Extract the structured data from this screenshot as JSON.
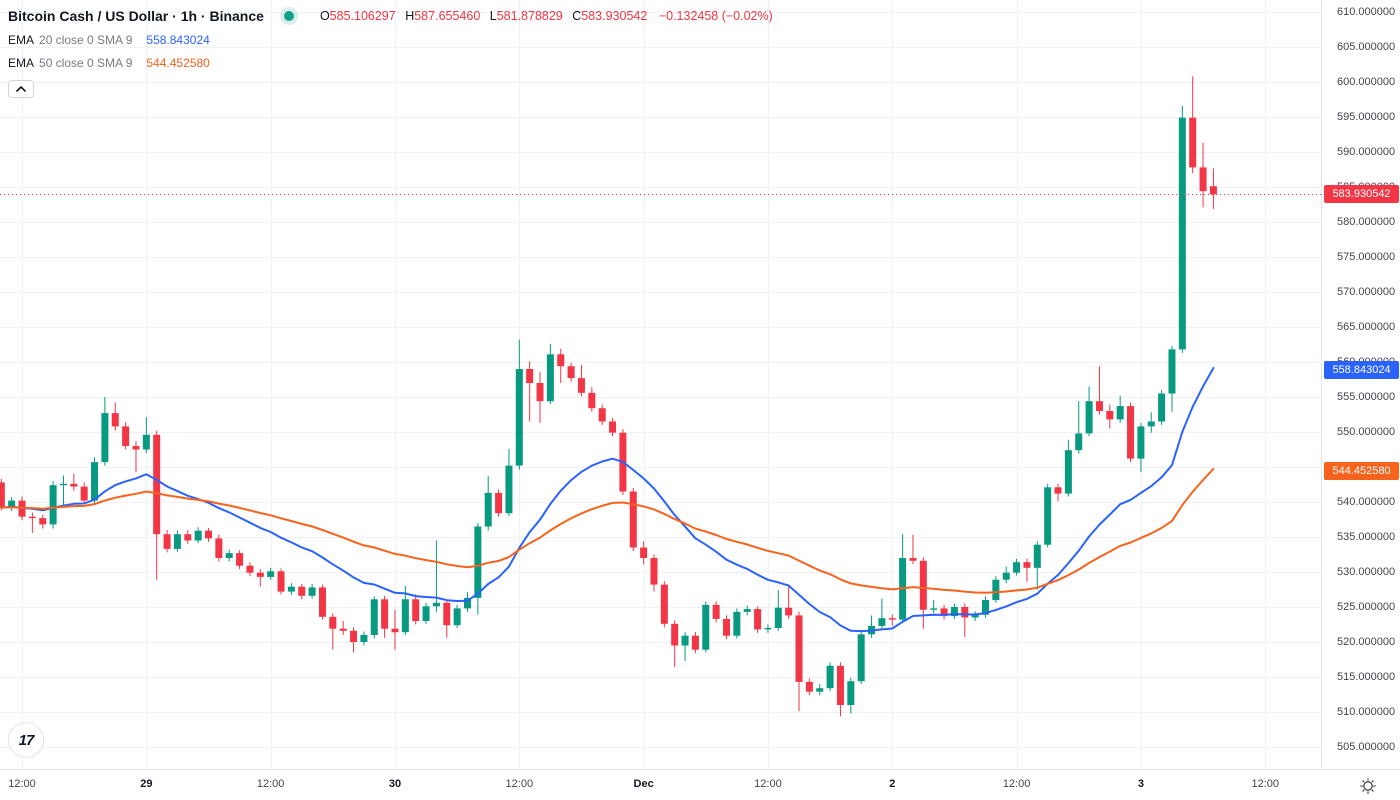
{
  "header": {
    "symbol_title": "Bitcoin Cash / US Dollar · 1h · Binance",
    "market_status_icon": "market-open-dot",
    "ohlc": {
      "o_label": "O",
      "o": "585.106297",
      "h_label": "H",
      "h": "587.655460",
      "l_label": "L",
      "l": "581.878829",
      "c_label": "C",
      "c": "583.930542",
      "change": "−0.132458 (−0.02%)"
    },
    "indicators": [
      {
        "name": "EMA",
        "params": "20 close 0 SMA 9",
        "value": "558.843024",
        "color": "#2962FF"
      },
      {
        "name": "EMA",
        "params": "50 close 0 SMA 9",
        "value": "544.452580",
        "color": "#F7621C"
      }
    ]
  },
  "colors": {
    "up": "#089981",
    "down": "#F23645",
    "ema20": "#2962FF",
    "ema50": "#F7621C",
    "current_price_line": "#F23645",
    "grid": "#F0F1F4",
    "axis_text": "#42464E"
  },
  "price_axis": {
    "ticks": [
      "610.000000",
      "605.000000",
      "600.000000",
      "595.000000",
      "590.000000",
      "585.000000",
      "580.000000",
      "575.000000",
      "570.000000",
      "565.000000",
      "560.000000",
      "555.000000",
      "550.000000",
      "545.000000",
      "540.000000",
      "535.000000",
      "530.000000",
      "525.000000",
      "520.000000",
      "515.000000",
      "510.000000",
      "505.000000"
    ],
    "tags": [
      {
        "text": "583.930542",
        "price": 583.930542,
        "bg": "#F23645",
        "name": "current-price-tag"
      },
      {
        "text": "558.843024",
        "price": 558.843024,
        "bg": "#2962FF",
        "name": "ema20-price-tag"
      },
      {
        "text": "544.452580",
        "price": 544.45258,
        "bg": "#F7621C",
        "name": "ema50-price-tag"
      }
    ]
  },
  "time_axis": {
    "labels": [
      {
        "text": "12:00",
        "index": 2,
        "major": false
      },
      {
        "text": "29",
        "index": 14,
        "major": true
      },
      {
        "text": "12:00",
        "index": 26,
        "major": false
      },
      {
        "text": "30",
        "index": 38,
        "major": true
      },
      {
        "text": "12:00",
        "index": 50,
        "major": false
      },
      {
        "text": "Dec",
        "index": 62,
        "major": true
      },
      {
        "text": "12:00",
        "index": 74,
        "major": false
      },
      {
        "text": "2",
        "index": 86,
        "major": true
      },
      {
        "text": "12:00",
        "index": 98,
        "major": false
      },
      {
        "text": "3",
        "index": 110,
        "major": true
      },
      {
        "text": "12:00",
        "index": 122,
        "major": false
      }
    ]
  },
  "chart_data": {
    "type": "candlestick",
    "title": "Bitcoin Cash / US Dollar",
    "interval": "1h",
    "exchange": "Binance",
    "price_range": [
      505,
      610
    ],
    "grid_step": 5,
    "current_price": 583.930542,
    "overlays": [
      {
        "name": "EMA 20",
        "period": 20,
        "color": "#2962FF",
        "last_value": 558.843024
      },
      {
        "name": "EMA 50",
        "period": 50,
        "color": "#F7621C",
        "last_value": 544.45258
      }
    ],
    "ohlc": [
      [
        542.8,
        543.3,
        538.8,
        539.2
      ],
      [
        539.2,
        540.7,
        538.7,
        540.2
      ],
      [
        540.2,
        540.8,
        537.4,
        537.9
      ],
      [
        537.9,
        538.5,
        535.6,
        537.7
      ],
      [
        537.7,
        538.2,
        536.2,
        536.8
      ],
      [
        536.8,
        543.0,
        536.2,
        542.4
      ],
      [
        542.4,
        543.8,
        539.5,
        542.6
      ],
      [
        542.6,
        544.0,
        541.6,
        542.2
      ],
      [
        542.2,
        542.8,
        539.7,
        540.2
      ],
      [
        540.2,
        546.4,
        539.8,
        545.7
      ],
      [
        545.7,
        555.0,
        545.2,
        552.7
      ],
      [
        552.7,
        554.2,
        550.2,
        550.8
      ],
      [
        550.8,
        551.4,
        547.5,
        548.0
      ],
      [
        548.0,
        548.7,
        544.3,
        547.5
      ],
      [
        547.5,
        552.1,
        547.0,
        549.6
      ],
      [
        549.6,
        550.2,
        528.9,
        535.4
      ],
      [
        535.4,
        536.0,
        532.8,
        533.3
      ],
      [
        533.3,
        535.9,
        532.9,
        535.4
      ],
      [
        535.4,
        536.0,
        534.0,
        534.5
      ],
      [
        534.5,
        536.4,
        534.1,
        535.9
      ],
      [
        535.9,
        536.3,
        534.3,
        534.8
      ],
      [
        534.8,
        535.3,
        531.5,
        532.0
      ],
      [
        532.0,
        533.2,
        531.5,
        532.7
      ],
      [
        532.7,
        533.1,
        530.4,
        530.9
      ],
      [
        530.9,
        531.4,
        529.4,
        529.9
      ],
      [
        529.9,
        530.4,
        527.9,
        529.3
      ],
      [
        529.3,
        530.6,
        528.9,
        530.1
      ],
      [
        530.1,
        530.5,
        526.8,
        527.2
      ],
      [
        527.2,
        528.4,
        526.7,
        527.9
      ],
      [
        527.9,
        528.3,
        526.1,
        526.6
      ],
      [
        526.6,
        528.3,
        526.2,
        527.8
      ],
      [
        527.8,
        528.2,
        523.2,
        523.6
      ],
      [
        523.6,
        524.1,
        518.9,
        521.9
      ],
      [
        521.9,
        523.0,
        521.0,
        521.6
      ],
      [
        521.6,
        522.1,
        518.5,
        520.0
      ],
      [
        520.0,
        521.5,
        519.5,
        521.0
      ],
      [
        521.0,
        526.5,
        520.5,
        526.1
      ],
      [
        526.1,
        526.6,
        520.6,
        521.9
      ],
      [
        521.9,
        524.6,
        518.9,
        521.4
      ],
      [
        521.4,
        528.0,
        521.0,
        526.1
      ],
      [
        526.1,
        526.8,
        522.5,
        523.0
      ],
      [
        523.0,
        525.6,
        522.6,
        525.1
      ],
      [
        525.1,
        534.5,
        524.3,
        525.6
      ],
      [
        525.6,
        526.1,
        520.6,
        522.4
      ],
      [
        522.4,
        525.3,
        522.0,
        524.8
      ],
      [
        524.8,
        527.1,
        524.3,
        526.3
      ],
      [
        526.3,
        537.0,
        523.9,
        536.5
      ],
      [
        536.5,
        543.7,
        535.9,
        541.3
      ],
      [
        541.3,
        541.8,
        537.9,
        538.4
      ],
      [
        538.4,
        547.6,
        538.0,
        545.2
      ],
      [
        545.2,
        563.2,
        544.6,
        559.0
      ],
      [
        559.0,
        560.1,
        551.5,
        557.0
      ],
      [
        557.0,
        558.6,
        551.3,
        554.4
      ],
      [
        554.4,
        562.6,
        554.0,
        561.1
      ],
      [
        561.1,
        561.9,
        557.0,
        559.4
      ],
      [
        559.4,
        559.9,
        557.2,
        557.7
      ],
      [
        557.7,
        559.6,
        555.1,
        555.6
      ],
      [
        555.6,
        556.4,
        552.9,
        553.4
      ],
      [
        553.4,
        553.9,
        551.0,
        551.5
      ],
      [
        551.5,
        552.0,
        549.4,
        549.9
      ],
      [
        549.9,
        550.4,
        541.0,
        541.5
      ],
      [
        541.5,
        542.0,
        533.0,
        533.5
      ],
      [
        533.5,
        534.4,
        531.1,
        532.0
      ],
      [
        532.0,
        532.5,
        527.2,
        528.2
      ],
      [
        528.2,
        528.7,
        522.1,
        522.6
      ],
      [
        522.6,
        523.1,
        516.4,
        519.5
      ],
      [
        519.5,
        521.4,
        517.3,
        520.9
      ],
      [
        520.9,
        521.4,
        518.4,
        518.9
      ],
      [
        518.9,
        525.8,
        518.5,
        525.3
      ],
      [
        525.3,
        525.8,
        522.8,
        523.3
      ],
      [
        523.3,
        523.8,
        520.4,
        520.9
      ],
      [
        520.9,
        524.8,
        520.5,
        524.3
      ],
      [
        524.3,
        525.2,
        523.8,
        524.7
      ],
      [
        524.7,
        525.1,
        521.3,
        521.8
      ],
      [
        521.8,
        522.5,
        521.3,
        522.0
      ],
      [
        522.0,
        527.4,
        521.6,
        524.9
      ],
      [
        524.9,
        528.1,
        523.3,
        523.8
      ],
      [
        523.8,
        524.3,
        510.1,
        514.3
      ],
      [
        514.3,
        514.8,
        512.4,
        512.9
      ],
      [
        512.9,
        514.0,
        512.4,
        513.4
      ],
      [
        513.4,
        517.1,
        513.0,
        516.6
      ],
      [
        516.6,
        517.1,
        509.4,
        511.0
      ],
      [
        511.0,
        514.9,
        509.8,
        514.4
      ],
      [
        514.4,
        521.6,
        514.0,
        521.1
      ],
      [
        521.1,
        523.8,
        520.6,
        522.3
      ],
      [
        522.3,
        526.2,
        521.9,
        523.4
      ],
      [
        523.4,
        523.9,
        522.3,
        523.2
      ],
      [
        523.2,
        535.4,
        522.7,
        532.0
      ],
      [
        532.0,
        535.3,
        531.1,
        531.6
      ],
      [
        531.6,
        532.1,
        521.9,
        524.6
      ],
      [
        524.6,
        526.0,
        524.1,
        524.8
      ],
      [
        524.8,
        525.3,
        523.2,
        523.7
      ],
      [
        523.7,
        525.5,
        523.3,
        525.0
      ],
      [
        525.0,
        525.5,
        520.7,
        523.5
      ],
      [
        523.5,
        524.4,
        523.0,
        523.9
      ],
      [
        523.9,
        526.5,
        523.5,
        526.0
      ],
      [
        526.0,
        529.4,
        525.6,
        528.9
      ],
      [
        528.9,
        530.8,
        528.4,
        529.9
      ],
      [
        529.9,
        531.9,
        529.5,
        531.4
      ],
      [
        531.4,
        531.9,
        528.6,
        530.6
      ],
      [
        530.6,
        534.4,
        527.5,
        533.9
      ],
      [
        533.9,
        542.6,
        533.5,
        542.1
      ],
      [
        542.1,
        542.6,
        540.1,
        541.2
      ],
      [
        541.2,
        548.9,
        540.8,
        547.4
      ],
      [
        547.4,
        554.4,
        546.9,
        549.8
      ],
      [
        549.8,
        556.5,
        549.4,
        554.4
      ],
      [
        554.4,
        559.4,
        552.5,
        553.0
      ],
      [
        553.0,
        553.9,
        550.5,
        551.8
      ],
      [
        551.8,
        555.2,
        551.3,
        553.7
      ],
      [
        553.7,
        554.2,
        545.7,
        546.2
      ],
      [
        546.2,
        551.3,
        544.3,
        550.8
      ],
      [
        550.8,
        552.8,
        549.9,
        551.5
      ],
      [
        551.5,
        556.0,
        551.0,
        555.5
      ],
      [
        555.5,
        562.3,
        552.9,
        561.8
      ],
      [
        561.8,
        596.6,
        561.3,
        594.9
      ],
      [
        594.9,
        600.8,
        587.0,
        587.8
      ],
      [
        587.8,
        591.3,
        582.1,
        584.4
      ],
      [
        585.106297,
        587.65546,
        581.878829,
        583.930542
      ]
    ]
  },
  "footer": {
    "logo_text": "17",
    "gear_icon": "timezone-settings"
  }
}
